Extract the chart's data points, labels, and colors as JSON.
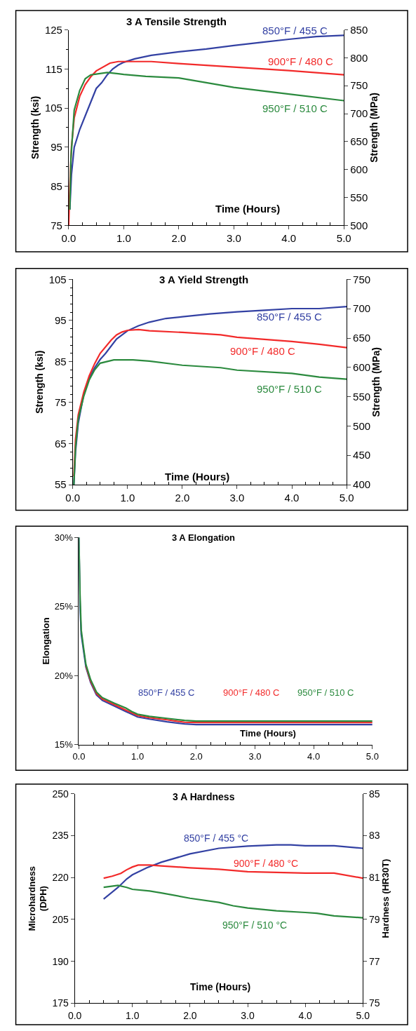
{
  "chart_data": [
    {
      "type": "line",
      "title": "3 A Tensile Strength",
      "xlabel": "Time (Hours)",
      "ylabel": "Strength (ksi)",
      "y2label": "Strength (MPa)",
      "xlim": [
        0,
        5
      ],
      "xticks": [
        {
          "value": 0,
          "label": "0.0"
        },
        {
          "value": 1,
          "label": "1.0"
        },
        {
          "value": 2,
          "label": "2.0"
        },
        {
          "value": 3,
          "label": "3.0"
        },
        {
          "value": 4,
          "label": "4.0"
        },
        {
          "value": 5,
          "label": "5.0"
        }
      ],
      "ylim": [
        75,
        125
      ],
      "yticks": [
        75,
        85,
        95,
        105,
        115,
        125
      ],
      "y2lim": [
        500,
        850
      ],
      "y2ticks": [
        500,
        550,
        600,
        650,
        700,
        750,
        800,
        850
      ],
      "series": [
        {
          "name": "850°F / 455 C",
          "color": "#3341a3",
          "x": [
            0.02,
            0.05,
            0.1,
            0.2,
            0.3,
            0.4,
            0.5,
            0.6,
            0.7,
            0.8,
            0.9,
            1.0,
            1.2,
            1.5,
            2.0,
            2.5,
            3.0,
            3.5,
            4.0,
            4.5,
            5.0
          ],
          "values": [
            79,
            88,
            95,
            99.5,
            103,
            106.5,
            110,
            111.5,
            113.5,
            115,
            116,
            116.7,
            117.6,
            118.5,
            119.4,
            120.1,
            121,
            121.8,
            122.6,
            123.3,
            123.6
          ]
        },
        {
          "name": "900°F / 480 C",
          "color": "#f22a2a",
          "x": [
            0.0,
            0.02,
            0.05,
            0.1,
            0.2,
            0.3,
            0.4,
            0.5,
            0.75,
            0.9,
            1.5,
            2.0,
            3.0,
            4.0,
            5.0
          ],
          "values": [
            75,
            85,
            95,
            102.5,
            108,
            111,
            113,
            114.5,
            116.5,
            116.9,
            116.9,
            116.4,
            115.5,
            114.6,
            113.5
          ]
        },
        {
          "name": "950°F / 510 C",
          "color": "#2b8a3e",
          "x": [
            0.02,
            0.04,
            0.1,
            0.2,
            0.3,
            0.4,
            0.5,
            0.7,
            0.9,
            1.0,
            1.4,
            2.0,
            2.5,
            3.0,
            4.0,
            5.0
          ],
          "values": [
            79,
            92,
            104.5,
            109.5,
            112.5,
            113.5,
            113.7,
            114.1,
            113.8,
            113.6,
            113.1,
            112.7,
            111.5,
            110.3,
            108.6,
            106.9
          ]
        }
      ]
    },
    {
      "type": "line",
      "title": "3 A Yield Strength",
      "xlabel": "Time (Hours)",
      "ylabel": "Strength (ksi)",
      "y2label": "Strength (MPa)",
      "xlim": [
        0,
        5
      ],
      "xticks": [
        {
          "value": 0,
          "label": "0.0"
        },
        {
          "value": 1,
          "label": "1.0"
        },
        {
          "value": 2,
          "label": "2.0"
        },
        {
          "value": 3,
          "label": "3.0"
        },
        {
          "value": 4,
          "label": "4.0"
        },
        {
          "value": 5,
          "label": "5.0"
        }
      ],
      "ylim": [
        55,
        105
      ],
      "yticks": [
        55,
        65,
        75,
        85,
        95,
        105
      ],
      "y2lim": [
        400,
        750
      ],
      "y2ticks": [
        400,
        450,
        500,
        550,
        600,
        650,
        700,
        750
      ],
      "series": [
        {
          "name": "850°F / 455 C",
          "color": "#3341a3",
          "x": [
            0.02,
            0.05,
            0.1,
            0.2,
            0.3,
            0.4,
            0.5,
            0.6,
            0.8,
            1.0,
            1.2,
            1.4,
            1.7,
            2.0,
            2.5,
            3.0,
            3.5,
            4.0,
            4.5,
            5.0
          ],
          "values": [
            55,
            63,
            70,
            77,
            81,
            83.5,
            85.5,
            87,
            90.5,
            92.5,
            93.7,
            94.6,
            95.5,
            95.9,
            96.6,
            97.1,
            97.5,
            97.9,
            97.9,
            98.4
          ]
        },
        {
          "name": "900°F / 480 C",
          "color": "#f22a2a",
          "x": [
            0.02,
            0.05,
            0.1,
            0.2,
            0.3,
            0.4,
            0.5,
            0.7,
            0.8,
            0.9,
            1.0,
            1.2,
            1.4,
            2.0,
            2.7,
            3.0,
            4.0,
            4.5,
            5.0
          ],
          "values": [
            57,
            66,
            72,
            77.5,
            81.5,
            84.5,
            87,
            90.2,
            91.5,
            92.2,
            92.6,
            92.8,
            92.5,
            92.1,
            91.5,
            90.9,
            89.9,
            89.2,
            88.4
          ]
        },
        {
          "name": "950°F / 510 C",
          "color": "#2b8a3e",
          "x": [
            0.02,
            0.05,
            0.1,
            0.2,
            0.3,
            0.4,
            0.5,
            0.75,
            1.1,
            1.4,
            2.0,
            2.7,
            3.0,
            4.0,
            4.5,
            5.0
          ],
          "values": [
            55,
            64,
            71,
            76.5,
            80.5,
            83,
            84.6,
            85.4,
            85.4,
            85.1,
            84.1,
            83.5,
            82.9,
            82.1,
            81.2,
            80.7
          ]
        }
      ]
    },
    {
      "type": "line",
      "title": "3 A Elongation",
      "xlabel": "Time (Hours)",
      "ylabel": "Elongation",
      "xlim": [
        0,
        5
      ],
      "xticks": [
        {
          "value": 0,
          "label": "0.0"
        },
        {
          "value": 1,
          "label": "1.0"
        },
        {
          "value": 2,
          "label": "2.0"
        },
        {
          "value": 3,
          "label": "3.0"
        },
        {
          "value": 4,
          "label": "4.0"
        },
        {
          "value": 5,
          "label": "5.0"
        }
      ],
      "ylim": [
        15,
        30
      ],
      "yticks": [
        {
          "value": 15,
          "label": "15%"
        },
        {
          "value": 20,
          "label": "20%"
        },
        {
          "value": 25,
          "label": "25%"
        },
        {
          "value": 30,
          "label": "30%"
        }
      ],
      "series": [
        {
          "name": "850°F / 455 C",
          "color": "#3341a3",
          "x": [
            0.0,
            0.02,
            0.04,
            0.08,
            0.12,
            0.2,
            0.3,
            0.4,
            0.6,
            0.8,
            0.9,
            1.0,
            1.2,
            1.5,
            1.8,
            2.0,
            5.0
          ],
          "values": [
            30,
            25,
            23,
            21.8,
            20.6,
            19.5,
            18.6,
            18.2,
            17.8,
            17.4,
            17.2,
            17.0,
            16.85,
            16.65,
            16.5,
            16.45,
            16.45
          ]
        },
        {
          "name": "900°F / 480 C",
          "color": "#f22a2a",
          "x": [
            0.12,
            0.2,
            0.3,
            0.4,
            0.6,
            0.8,
            0.9,
            1.0,
            1.2,
            1.5,
            1.8,
            2.0,
            5.0
          ],
          "values": [
            20.7,
            19.6,
            18.7,
            18.3,
            17.9,
            17.5,
            17.3,
            17.1,
            16.95,
            16.8,
            16.62,
            16.6,
            16.6
          ]
        },
        {
          "name": "950°F / 510 C",
          "color": "#2b8a3e",
          "x": [
            0.0,
            0.02,
            0.04,
            0.08,
            0.12,
            0.2,
            0.3,
            0.4,
            0.6,
            0.8,
            0.9,
            1.0,
            1.2,
            1.5,
            1.8,
            2.0,
            5.0
          ],
          "values": [
            30,
            25.8,
            23.3,
            22.0,
            20.8,
            19.7,
            18.8,
            18.4,
            18.0,
            17.65,
            17.4,
            17.2,
            17.05,
            16.9,
            16.75,
            16.7,
            16.7
          ]
        }
      ]
    },
    {
      "type": "line",
      "title": "3 A Hardness",
      "xlabel": "Time (Hours)",
      "ylabel": "Microhardness\n(DPH)",
      "y2label": "Hardness (HR30T)",
      "xlim": [
        0,
        5
      ],
      "xticks": [
        {
          "value": 0,
          "label": "0.0"
        },
        {
          "value": 1,
          "label": "1.0"
        },
        {
          "value": 2,
          "label": "2.0"
        },
        {
          "value": 3,
          "label": "3.0"
        },
        {
          "value": 4,
          "label": "4.0"
        },
        {
          "value": 5,
          "label": "5.0"
        }
      ],
      "ylim": [
        175,
        250
      ],
      "yticks": [
        175,
        190,
        205,
        220,
        235,
        250
      ],
      "y2lim": [
        75,
        85
      ],
      "y2ticks": [
        75,
        77,
        79,
        81,
        83,
        85
      ],
      "series": [
        {
          "name": "850°F / 455 °C",
          "color": "#3341a3",
          "x": [
            0.5,
            0.75,
            0.9,
            1.0,
            1.25,
            1.5,
            2.0,
            2.5,
            3.0,
            3.5,
            3.75,
            4.0,
            4.5,
            5.0
          ],
          "values": [
            212.3,
            216.5,
            219.5,
            221,
            223.5,
            225.5,
            228.5,
            230.5,
            231.3,
            231.7,
            231.7,
            231.4,
            231.4,
            230.5
          ]
        },
        {
          "name": "900°F / 480 °C",
          "color": "#f22a2a",
          "x": [
            0.5,
            0.65,
            0.8,
            0.9,
            1.0,
            1.1,
            1.3,
            1.5,
            2.0,
            2.5,
            3.0,
            4.0,
            4.5,
            5.0
          ],
          "values": [
            219.8,
            220.5,
            221.5,
            222.8,
            223.8,
            224.5,
            224.5,
            224.2,
            223.5,
            223,
            222.1,
            221.6,
            221.6,
            219.8
          ]
        },
        {
          "name": "950°F / 510 °C",
          "color": "#2b8a3e",
          "x": [
            0.5,
            0.75,
            0.9,
            1.0,
            1.3,
            1.5,
            2.0,
            2.5,
            2.75,
            3.0,
            3.5,
            4.0,
            4.2,
            4.5,
            5.0
          ],
          "values": [
            216.5,
            217.2,
            216.5,
            215.8,
            215.2,
            214.5,
            212.6,
            211.1,
            209.9,
            209.1,
            208.1,
            207.5,
            207.2,
            206.3,
            205.6
          ]
        }
      ]
    }
  ]
}
